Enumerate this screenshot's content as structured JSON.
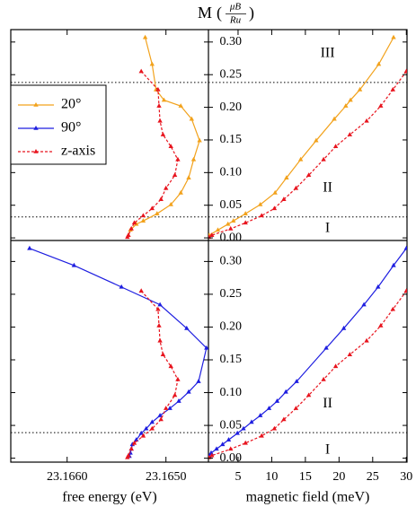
{
  "title": {
    "symbol": "M",
    "open": "(",
    "numerator": "μB",
    "denominator": "Ru",
    "close": ")"
  },
  "legend": {
    "position": "upper left",
    "entries": [
      {
        "name": "20°",
        "color": "#f2a21c",
        "dash": false
      },
      {
        "name": "90°",
        "color": "#1e1ee0",
        "dash": false
      },
      {
        "name": "z-axis",
        "color": "#e8141e",
        "dash": true
      }
    ]
  },
  "chart_data": [
    {
      "type": "line",
      "xlim": [
        23.16657,
        23.16457
      ],
      "ylim": [
        -0.004,
        0.319
      ],
      "hlines": [
        0.032,
        0.238
      ],
      "series": [
        {
          "color": "#f2a21c",
          "dash": false,
          "x": [
            23.16521,
            23.16514,
            23.1651,
            23.16502,
            23.16485,
            23.16474,
            23.16466,
            23.16472,
            23.16477,
            23.16485,
            23.16495,
            23.16509,
            23.16523,
            23.1653,
            23.16536,
            23.16538
          ],
          "values": [
            0.307,
            0.266,
            0.227,
            0.211,
            0.202,
            0.182,
            0.149,
            0.12,
            0.092,
            0.069,
            0.051,
            0.037,
            0.026,
            0.021,
            0.012,
            0.004
          ]
        },
        {
          "color": "#e8141e",
          "dash": true,
          "x": [
            23.16525,
            23.16508,
            23.16507,
            23.16506,
            23.16503,
            23.16495,
            23.16488,
            23.16491,
            23.165,
            23.16505,
            23.16514,
            23.16523,
            23.16532,
            23.16535,
            23.16538,
            23.16539
          ],
          "values": [
            0.255,
            0.227,
            0.202,
            0.179,
            0.158,
            0.14,
            0.12,
            0.096,
            0.076,
            0.059,
            0.045,
            0.034,
            0.023,
            0.014,
            0.004,
            0.001
          ]
        }
      ]
    },
    {
      "type": "line",
      "xlim": [
        0.6,
        30.1
      ],
      "ylim": [
        -0.004,
        0.319
      ],
      "hlines": [
        0.032,
        0.238
      ],
      "yticks": [
        {
          "value": 0,
          "label": "0.00"
        },
        {
          "value": 0.05,
          "label": "0.05"
        },
        {
          "value": 0.1,
          "label": "0.10"
        },
        {
          "value": 0.15,
          "label": "0.15"
        },
        {
          "value": 0.2,
          "label": "0.20"
        },
        {
          "value": 0.25,
          "label": "0.25"
        },
        {
          "value": 0.3,
          "label": "0.30"
        }
      ],
      "regions": [
        "I",
        "II",
        "III"
      ],
      "series": [
        {
          "color": "#f2a21c",
          "dash": false,
          "x": [
            28.1,
            25.9,
            23.1,
            21.7,
            21,
            19.3,
            16.6,
            14.3,
            12.2,
            10.5,
            8.3,
            6.1,
            4.3,
            3.5,
            2,
            0.7
          ],
          "values": [
            0.307,
            0.266,
            0.227,
            0.211,
            0.202,
            0.182,
            0.149,
            0.12,
            0.092,
            0.069,
            0.051,
            0.037,
            0.026,
            0.021,
            0.012,
            0.004
          ]
        },
        {
          "color": "#e8141e",
          "dash": true,
          "x": [
            30,
            28,
            26.2,
            24.1,
            21.6,
            19.5,
            17.7,
            15.5,
            13.6,
            11.8,
            10.4,
            8.5,
            6.1,
            3.9,
            1.1,
            0.7
          ],
          "values": [
            0.255,
            0.227,
            0.202,
            0.179,
            0.158,
            0.14,
            0.12,
            0.096,
            0.076,
            0.059,
            0.045,
            0.034,
            0.023,
            0.014,
            0.004,
            0.001
          ]
        }
      ]
    },
    {
      "type": "line",
      "xlim": [
        23.16657,
        23.16457
      ],
      "ylim": [
        -0.006,
        0.332
      ],
      "hlines": [
        0.039
      ],
      "x_label": "free energy (eV)",
      "xticks": [
        {
          "value": 23.166,
          "label": "23.1660"
        },
        {
          "value": 23.165,
          "label": "23.1650"
        }
      ],
      "series": [
        {
          "color": "#1e1ee0",
          "dash": false,
          "x": [
            23.16638,
            23.16593,
            23.16545,
            23.16506,
            23.16479,
            23.16459,
            23.16467,
            23.16477,
            23.16487,
            23.16496,
            23.16506,
            23.16514,
            23.1652,
            23.16525,
            23.1653,
            23.16534,
            23.16535,
            23.16536,
            23.16537
          ],
          "values": [
            0.32,
            0.294,
            0.261,
            0.234,
            0.198,
            0.168,
            0.117,
            0.101,
            0.087,
            0.076,
            0.065,
            0.055,
            0.045,
            0.038,
            0.028,
            0.021,
            0.014,
            0.008,
            0.003
          ]
        },
        {
          "color": "#e8141e",
          "dash": true,
          "x": [
            23.16525,
            23.16508,
            23.16507,
            23.16506,
            23.16503,
            23.16495,
            23.16488,
            23.16491,
            23.165,
            23.16505,
            23.16514,
            23.16523,
            23.16532,
            23.16535,
            23.16538,
            23.16539
          ],
          "values": [
            0.255,
            0.227,
            0.202,
            0.179,
            0.158,
            0.14,
            0.12,
            0.096,
            0.076,
            0.059,
            0.045,
            0.034,
            0.023,
            0.014,
            0.004,
            0.001
          ]
        }
      ]
    },
    {
      "type": "line",
      "xlim": [
        0.6,
        30.1
      ],
      "ylim": [
        -0.006,
        0.332
      ],
      "hlines": [
        0.039
      ],
      "x_label": "magnetic field (meV)",
      "xticks": [
        5,
        10,
        15,
        20,
        25,
        30
      ],
      "yticks": [
        {
          "value": 0,
          "label": "0.00"
        },
        {
          "value": 0.05,
          "label": "0.05"
        },
        {
          "value": 0.1,
          "label": "0.10"
        },
        {
          "value": 0.15,
          "label": "0.15"
        },
        {
          "value": 0.2,
          "label": "0.20"
        },
        {
          "value": 0.25,
          "label": "0.25"
        },
        {
          "value": 0.3,
          "label": "0.30"
        }
      ],
      "regions": [
        "I",
        "II"
      ],
      "series": [
        {
          "color": "#1e1ee0",
          "dash": false,
          "x": [
            30,
            28.1,
            25.8,
            23.7,
            20.7,
            18.1,
            13.7,
            12.1,
            10.8,
            9.6,
            8.3,
            7,
            5.8,
            4.9,
            3.6,
            2.7,
            1.8,
            1,
            0.7
          ],
          "values": [
            0.32,
            0.294,
            0.261,
            0.234,
            0.198,
            0.168,
            0.117,
            0.101,
            0.087,
            0.076,
            0.065,
            0.055,
            0.045,
            0.038,
            0.028,
            0.021,
            0.014,
            0.008,
            0.003
          ]
        },
        {
          "color": "#e8141e",
          "dash": true,
          "x": [
            30,
            28,
            26.2,
            24.1,
            21.6,
            19.5,
            17.7,
            15.5,
            13.6,
            11.8,
            10.4,
            8.5,
            6.1,
            3.9,
            1.1,
            0.7
          ],
          "values": [
            0.255,
            0.227,
            0.202,
            0.179,
            0.158,
            0.14,
            0.12,
            0.096,
            0.076,
            0.059,
            0.045,
            0.034,
            0.023,
            0.014,
            0.004,
            0.001
          ]
        }
      ]
    }
  ]
}
